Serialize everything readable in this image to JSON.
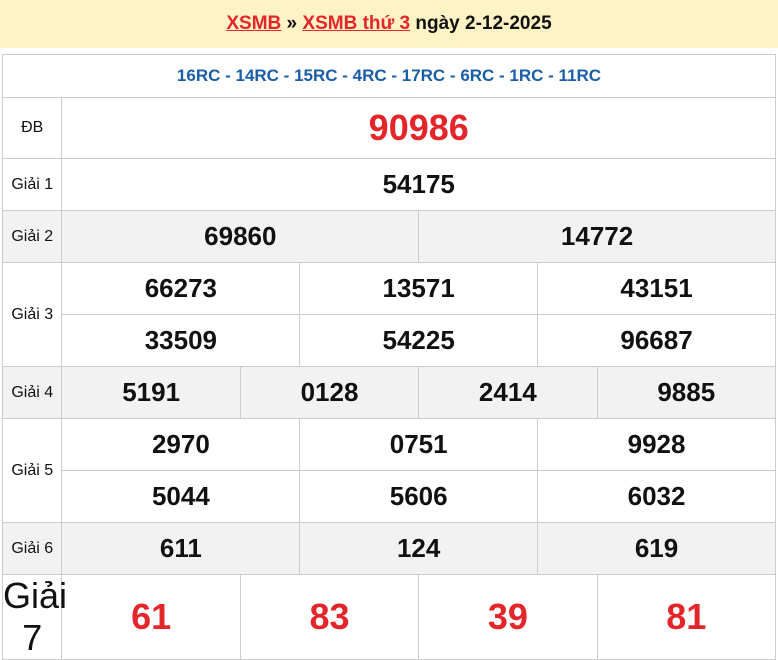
{
  "header": {
    "link1": "XSMB",
    "sep": " » ",
    "link2": "XSMB thứ 3",
    "date": " ngày 2-12-2025"
  },
  "codes": "16RC - 14RC - 15RC - 4RC - 17RC - 6RC - 1RC - 11RC",
  "prizes": {
    "db": {
      "label": "ĐB",
      "values": [
        "90986"
      ]
    },
    "g1": {
      "label": "Giải 1",
      "values": [
        "54175"
      ]
    },
    "g2": {
      "label": "Giải 2",
      "values": [
        "69860",
        "14772"
      ]
    },
    "g3": {
      "label": "Giải 3",
      "values": [
        "66273",
        "13571",
        "43151",
        "33509",
        "54225",
        "96687"
      ]
    },
    "g4": {
      "label": "Giải 4",
      "values": [
        "5191",
        "0128",
        "2414",
        "9885"
      ]
    },
    "g5": {
      "label": "Giải 5",
      "values": [
        "2970",
        "0751",
        "9928",
        "5044",
        "5606",
        "6032"
      ]
    },
    "g6": {
      "label": "Giải 6",
      "values": [
        "611",
        "124",
        "619"
      ]
    },
    "g7": {
      "label": "Giải 7",
      "values": [
        "61",
        "83",
        "39",
        "81"
      ]
    }
  },
  "colors": {
    "accent": "#e4252a",
    "codes": "#1a5ea8",
    "header_bg": "#fff2c4"
  }
}
